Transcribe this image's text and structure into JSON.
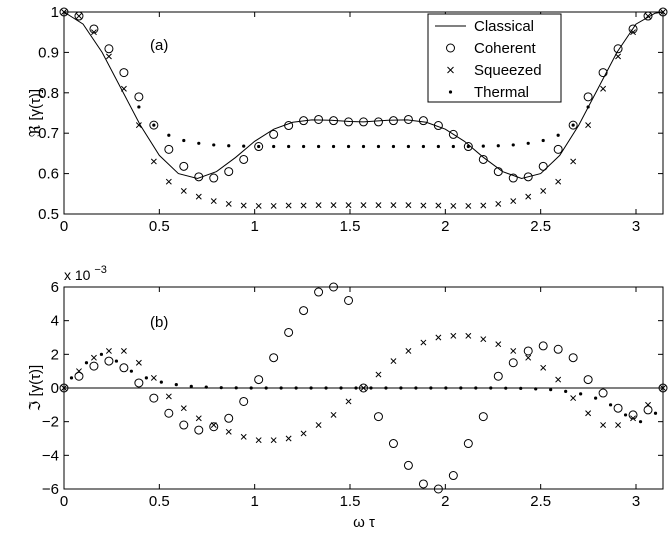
{
  "chart_data": [
    {
      "type": "line",
      "panel_label": "(a)",
      "ylabel": "ℜ [γ(τ)]",
      "xlim": [
        0,
        3.1416
      ],
      "ylim": [
        0.5,
        1.0
      ],
      "xticks": [
        0,
        0.5,
        1,
        1.5,
        2,
        2.5,
        3
      ],
      "yticks": [
        0.5,
        0.6,
        0.7,
        0.8,
        0.9,
        1
      ],
      "ytick_labels": [
        "0.5",
        "0.6",
        "0.7",
        "0.8",
        "0.9",
        "1"
      ],
      "legend_position": "top-right",
      "legend": [
        "Classical",
        "Coherent",
        "Squeezed",
        "Thermal"
      ],
      "series": [
        {
          "name": "Classical",
          "marker": "line",
          "x": [
            0,
            0.1,
            0.2,
            0.3,
            0.4,
            0.5,
            0.6,
            0.7,
            0.8,
            0.9,
            1.0,
            1.1,
            1.2,
            1.3,
            1.4,
            1.5,
            1.5708,
            1.6,
            1.7,
            1.8,
            1.9,
            2.0,
            2.1,
            2.2,
            2.3,
            2.4,
            2.5,
            2.6,
            2.7,
            2.8,
            2.9,
            3.0,
            3.1,
            3.1416
          ],
          "y": [
            1.0,
            0.97,
            0.9,
            0.81,
            0.72,
            0.645,
            0.6,
            0.588,
            0.605,
            0.64,
            0.68,
            0.71,
            0.727,
            0.733,
            0.732,
            0.729,
            0.728,
            0.729,
            0.732,
            0.733,
            0.727,
            0.71,
            0.68,
            0.64,
            0.605,
            0.588,
            0.6,
            0.645,
            0.72,
            0.81,
            0.9,
            0.97,
            0.997,
            1.0
          ]
        },
        {
          "name": "Coherent",
          "marker": "circle",
          "x": [
            0,
            0.0785,
            0.157,
            0.2356,
            0.3142,
            0.3927,
            0.4712,
            0.5498,
            0.6283,
            0.7069,
            0.7854,
            0.864,
            0.9425,
            1.021,
            1.0996,
            1.1781,
            1.2566,
            1.3352,
            1.4137,
            1.4923,
            1.5708,
            1.6493,
            1.7279,
            1.8064,
            1.885,
            1.9635,
            2.042,
            2.1206,
            2.1991,
            2.2777,
            2.3562,
            2.4347,
            2.5133,
            2.5918,
            2.6704,
            2.7489,
            2.8274,
            2.906,
            2.9845,
            3.0631,
            3.1416
          ],
          "y": [
            1.0,
            0.99,
            0.958,
            0.909,
            0.85,
            0.79,
            0.72,
            0.66,
            0.618,
            0.592,
            0.589,
            0.605,
            0.635,
            0.667,
            0.697,
            0.719,
            0.731,
            0.734,
            0.731,
            0.728,
            0.728,
            0.728,
            0.731,
            0.734,
            0.731,
            0.719,
            0.697,
            0.667,
            0.635,
            0.605,
            0.589,
            0.592,
            0.618,
            0.66,
            0.72,
            0.79,
            0.85,
            0.909,
            0.958,
            0.99,
            1.0
          ]
        },
        {
          "name": "Squeezed",
          "marker": "x",
          "x": [
            0,
            0.0785,
            0.157,
            0.2356,
            0.3142,
            0.3927,
            0.4712,
            0.5498,
            0.6283,
            0.7069,
            0.7854,
            0.864,
            0.9425,
            1.021,
            1.0996,
            1.1781,
            1.2566,
            1.3352,
            1.4137,
            1.4923,
            1.5708,
            1.6493,
            1.7279,
            1.8064,
            1.885,
            1.9635,
            2.042,
            2.1206,
            2.1991,
            2.2777,
            2.3562,
            2.4347,
            2.5133,
            2.5918,
            2.6704,
            2.7489,
            2.8274,
            2.906,
            2.9845,
            3.0631,
            3.1416
          ],
          "y": [
            1.0,
            0.99,
            0.95,
            0.89,
            0.81,
            0.72,
            0.63,
            0.58,
            0.557,
            0.543,
            0.532,
            0.525,
            0.521,
            0.52,
            0.52,
            0.521,
            0.521,
            0.522,
            0.522,
            0.522,
            0.522,
            0.522,
            0.522,
            0.522,
            0.521,
            0.521,
            0.52,
            0.52,
            0.521,
            0.525,
            0.532,
            0.543,
            0.557,
            0.58,
            0.63,
            0.72,
            0.81,
            0.89,
            0.95,
            0.99,
            1.0
          ]
        },
        {
          "name": "Thermal",
          "marker": "dot",
          "x": [
            0.3927,
            0.4712,
            0.5498,
            0.6283,
            0.7069,
            0.7854,
            0.864,
            0.9425,
            1.021,
            1.0996,
            1.1781,
            1.2566,
            1.3352,
            1.4137,
            1.4923,
            1.5708,
            1.6493,
            1.7279,
            1.8064,
            1.885,
            1.9635,
            2.042,
            2.1206,
            2.1991,
            2.2777,
            2.3562,
            2.4347,
            2.5133,
            2.5918,
            2.6704,
            2.7489
          ],
          "y": [
            0.765,
            0.72,
            0.695,
            0.682,
            0.675,
            0.671,
            0.669,
            0.668,
            0.667,
            0.667,
            0.667,
            0.667,
            0.667,
            0.667,
            0.667,
            0.667,
            0.667,
            0.667,
            0.667,
            0.667,
            0.667,
            0.667,
            0.667,
            0.668,
            0.669,
            0.671,
            0.675,
            0.682,
            0.695,
            0.72,
            0.765
          ]
        }
      ]
    },
    {
      "type": "line",
      "panel_label": "(b)",
      "ylabel": "ℑ [γ(τ)]",
      "xlabel": "ω τ",
      "multiplier_label": "x 10",
      "multiplier_exponent": "−3",
      "xlim": [
        0,
        3.1416
      ],
      "ylim": [
        -6,
        6
      ],
      "xticks": [
        0,
        0.5,
        1,
        1.5,
        2,
        2.5,
        3
      ],
      "yticks": [
        -6,
        -4,
        -2,
        0,
        2,
        4,
        6
      ],
      "ytick_labels": [
        "−6",
        "−4",
        "−2",
        "0",
        "2",
        "4",
        "6"
      ],
      "series": [
        {
          "name": "Classical",
          "marker": "line",
          "x": [
            0,
            3.1416
          ],
          "y": [
            0,
            0
          ]
        },
        {
          "name": "Coherent",
          "marker": "circle",
          "x": [
            0,
            0.0785,
            0.157,
            0.2356,
            0.3142,
            0.3927,
            0.4712,
            0.5498,
            0.6283,
            0.7069,
            0.7854,
            0.864,
            0.9425,
            1.021,
            1.0996,
            1.1781,
            1.2566,
            1.3352,
            1.4137,
            1.4923,
            1.5708,
            1.6493,
            1.7279,
            1.8064,
            1.885,
            1.9635,
            2.042,
            2.1206,
            2.1991,
            2.2777,
            2.3562,
            2.4347,
            2.5133,
            2.5918,
            2.6704,
            2.7489,
            2.8274,
            2.906,
            2.9845,
            3.0631,
            3.1416
          ],
          "y": [
            0,
            0.7,
            1.3,
            1.6,
            1.2,
            0.3,
            -0.6,
            -1.5,
            -2.2,
            -2.5,
            -2.3,
            -1.8,
            -0.8,
            0.5,
            1.8,
            3.3,
            4.6,
            5.7,
            6.0,
            5.2,
            0,
            -1.7,
            -3.3,
            -4.6,
            -5.7,
            -6.0,
            -5.2,
            -3.3,
            -1.7,
            0.7,
            1.5,
            2.2,
            2.5,
            2.3,
            1.8,
            0.5,
            -0.3,
            -1.2,
            -1.6,
            -1.3,
            0
          ]
        },
        {
          "name": "Squeezed",
          "marker": "x",
          "x": [
            0,
            0.0785,
            0.157,
            0.2356,
            0.3142,
            0.3927,
            0.4712,
            0.5498,
            0.6283,
            0.7069,
            0.7854,
            0.864,
            0.9425,
            1.021,
            1.0996,
            1.1781,
            1.2566,
            1.3352,
            1.4137,
            1.4923,
            1.5708,
            1.6493,
            1.7279,
            1.8064,
            1.885,
            1.9635,
            2.042,
            2.1206,
            2.1991,
            2.2777,
            2.3562,
            2.4347,
            2.5133,
            2.5918,
            2.6704,
            2.7489,
            2.8274,
            2.906,
            2.9845,
            3.0631,
            3.1416
          ],
          "y": [
            0,
            1.0,
            1.8,
            2.2,
            2.2,
            1.5,
            0.6,
            -0.5,
            -1.2,
            -1.8,
            -2.2,
            -2.6,
            -2.9,
            -3.1,
            -3.1,
            -3.0,
            -2.7,
            -2.2,
            -1.6,
            -0.8,
            0,
            0.8,
            1.6,
            2.2,
            2.7,
            3.0,
            3.1,
            3.1,
            2.9,
            2.6,
            2.2,
            1.8,
            1.2,
            0.5,
            -0.6,
            -1.5,
            -2.2,
            -2.2,
            -1.8,
            -1.0,
            0
          ]
        },
        {
          "name": "Thermal",
          "marker": "dot",
          "x": [
            0.0393,
            0.1178,
            0.1963,
            0.2749,
            0.3534,
            0.432,
            0.5105,
            0.589,
            0.6676,
            0.7461,
            0.8247,
            0.9032,
            0.9817,
            1.0603,
            1.1388,
            1.2174,
            1.2959,
            1.3744,
            1.453,
            1.5315,
            1.6101,
            1.6886,
            1.7671,
            1.8457,
            1.9242,
            2.0028,
            2.0813,
            2.1598,
            2.2384,
            2.3169,
            2.3955,
            2.474,
            2.5525,
            2.6311,
            2.7096,
            2.7882,
            2.8667,
            2.9452,
            3.0238,
            3.1023
          ],
          "y": [
            0.6,
            1.5,
            2.0,
            1.6,
            1.0,
            0.6,
            0.35,
            0.2,
            0.1,
            0.05,
            0.02,
            0.01,
            0,
            0,
            0,
            0,
            0,
            0,
            0,
            0,
            0,
            0,
            0,
            0,
            0,
            0,
            0,
            0,
            0,
            -0.01,
            -0.02,
            -0.05,
            -0.1,
            -0.2,
            -0.35,
            -0.6,
            -1.0,
            -1.6,
            -2.0,
            -1.5
          ]
        }
      ]
    }
  ]
}
